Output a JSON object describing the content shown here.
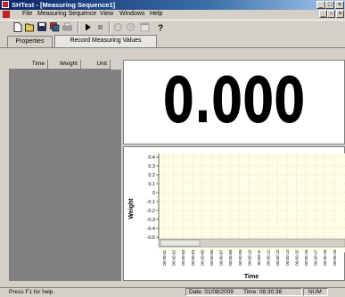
{
  "window": {
    "title": "SHTest - [Measuring Sequence1]",
    "minimize": "_",
    "maximize": "□",
    "close": "×"
  },
  "menu": [
    "File",
    "Measuring Sequence",
    "View",
    "Windows",
    "Help"
  ],
  "mdi": {
    "minimize": "_",
    "restore": "▫",
    "close": "×"
  },
  "toolbar": {
    "icons": [
      "new-icon",
      "open-icon",
      "save-icon",
      "disk-icon",
      "print-icon",
      "play-icon",
      "stop-icon",
      "hand-icon",
      "clock-icon",
      "window-icon",
      "help-icon"
    ]
  },
  "tabs": [
    "Properties",
    "Record Measuring Values"
  ],
  "list": {
    "columns": [
      "Time",
      "Weight",
      "Unit"
    ]
  },
  "display": {
    "value": "0.000"
  },
  "status": {
    "help": "Press F1 for help.",
    "date": "Date: 01/08/2009",
    "time": "Time: 08:30:38",
    "num": "NUM"
  },
  "chart_data": {
    "type": "line",
    "title": "",
    "xlabel": "Time",
    "ylabel": "Weight",
    "ylim": [
      -0.5,
      0.4
    ],
    "yticks": [
      "0.4",
      "0.3",
      "0.2",
      "0.1",
      "0",
      "-0.1",
      "-0.2",
      "-0.3",
      "-0.4",
      "-0.5"
    ],
    "xticks": [
      "00:00:01",
      "00:00:02",
      "00:00:03",
      "00:00:04",
      "00:00:05",
      "00:00:06",
      "00:00:07",
      "00:00:08",
      "00:00:09",
      "00:00:10",
      "00:00:11",
      "00:00:12",
      "00:00:13",
      "00:00:14",
      "00:00:15",
      "00:00:16",
      "00:00:17",
      "00:00:18",
      "00:00:19"
    ],
    "grid": true,
    "series": []
  }
}
